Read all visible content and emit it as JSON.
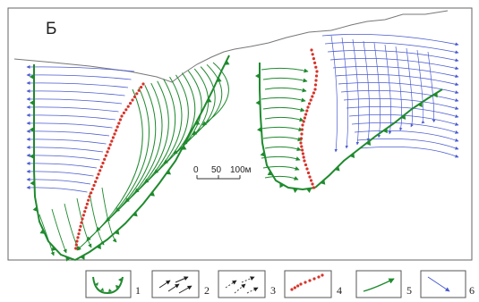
{
  "figure": {
    "panel_letter": "Б",
    "scale_bar": {
      "labels": [
        "0",
        "50",
        "100м"
      ]
    },
    "colors": {
      "green": "#1f8a2e",
      "blue": "#4a5bd0",
      "red": "#d6332a",
      "outline": "#555555"
    },
    "legend": [
      {
        "num": "1",
        "symbol": "green-cirque-symbol"
      },
      {
        "num": "2",
        "symbol": "black-arrows-symbol"
      },
      {
        "num": "3",
        "symbol": "dashed-arrows-symbol"
      },
      {
        "num": "4",
        "symbol": "red-dotted-line-symbol"
      },
      {
        "num": "5",
        "symbol": "green-arrow-symbol"
      },
      {
        "num": "6",
        "symbol": "blue-arrow-symbol"
      }
    ]
  }
}
